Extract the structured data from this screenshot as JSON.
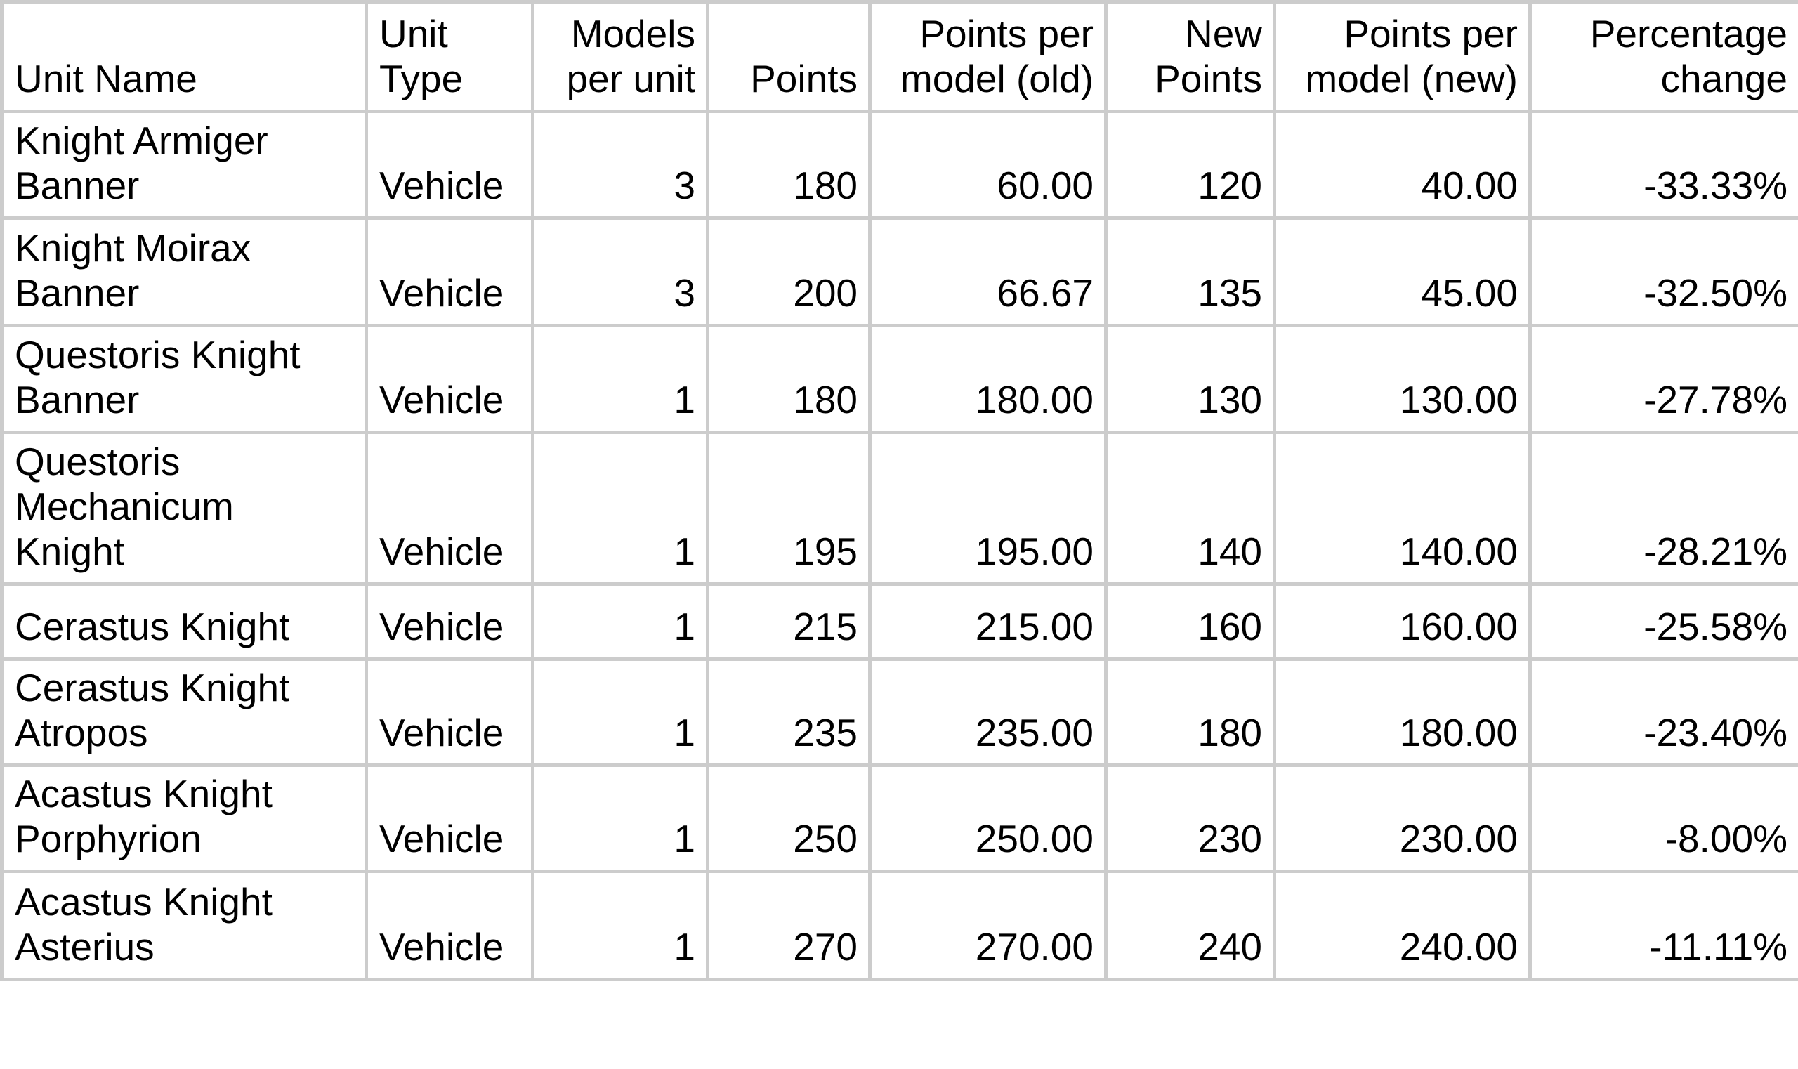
{
  "chart_data": {
    "type": "table",
    "columns": [
      "Unit Name",
      "Unit Type",
      "Models per unit",
      "Points",
      "Points per model (old)",
      "New Points",
      "Points per model (new)",
      "Percentage change"
    ],
    "rows": [
      [
        "Knight Armiger Banner",
        "Vehicle",
        "3",
        "180",
        "60.00",
        "120",
        "40.00",
        "-33.33%"
      ],
      [
        "Knight Moirax Banner",
        "Vehicle",
        "3",
        "200",
        "66.67",
        "135",
        "45.00",
        "-32.50%"
      ],
      [
        "Questoris Knight Banner",
        "Vehicle",
        "1",
        "180",
        "180.00",
        "130",
        "130.00",
        "-27.78%"
      ],
      [
        "Questoris Mechanicum Knight",
        "Vehicle",
        "1",
        "195",
        "195.00",
        "140",
        "140.00",
        "-28.21%"
      ],
      [
        "Cerastus Knight",
        "Vehicle",
        "1",
        "215",
        "215.00",
        "160",
        "160.00",
        "-25.58%"
      ],
      [
        "Cerastus Knight Atropos",
        "Vehicle",
        "1",
        "235",
        "235.00",
        "180",
        "180.00",
        "-23.40%"
      ],
      [
        "Acastus Knight Porphyrion",
        "Vehicle",
        "1",
        "250",
        "250.00",
        "230",
        "230.00",
        "-8.00%"
      ],
      [
        "Acastus Knight Asterius",
        "Vehicle",
        "1",
        "270",
        "270.00",
        "240",
        "240.00",
        "-11.11%"
      ]
    ],
    "title": "",
    "legend": null,
    "grid": true
  },
  "colors": {
    "border": "#cccccc",
    "text": "#000000",
    "background": "#ffffff"
  }
}
